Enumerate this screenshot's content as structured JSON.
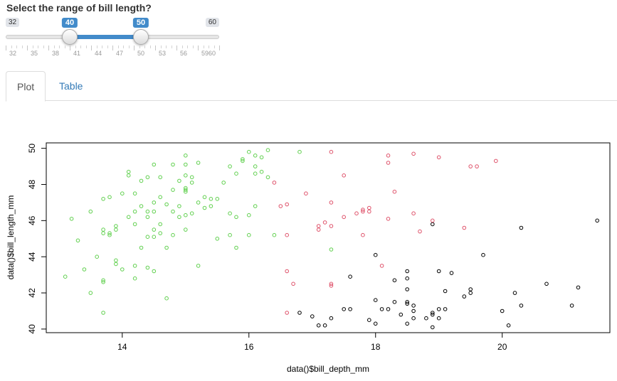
{
  "slider": {
    "label": "Select the range of bill length?",
    "min": 32,
    "max": 60,
    "from": 40,
    "to": 50,
    "min_label": "32",
    "max_label": "60",
    "from_label": "40",
    "to_label": "50",
    "grid_labels": [
      "32",
      "35",
      "38",
      "41",
      "44",
      "47",
      "50",
      "53",
      "56",
      "5960"
    ]
  },
  "tabs": [
    {
      "label": "Plot",
      "active": true
    },
    {
      "label": "Table",
      "active": false
    }
  ],
  "colors": {
    "accent": "#428bca",
    "link": "#337ab7",
    "series_black": "#000000",
    "series_red": "#df536b",
    "series_green": "#61d04f"
  },
  "chart_data": {
    "type": "scatter",
    "xlabel": "data()$bill_depth_mm",
    "ylabel": "data()$bill_length_mm",
    "xlim": [
      12.8,
      21.7
    ],
    "ylim": [
      39.8,
      50.3
    ],
    "x_ticks": [
      "14",
      "16",
      "18",
      "20"
    ],
    "y_ticks": [
      "40",
      "42",
      "44",
      "46",
      "48",
      "50"
    ],
    "series": [
      {
        "color": "#000000",
        "points": [
          [
            17.0,
            40.7
          ],
          [
            17.1,
            40.2
          ],
          [
            17.2,
            40.2
          ],
          [
            16.8,
            40.9
          ],
          [
            17.3,
            40.6
          ],
          [
            17.6,
            41.1
          ],
          [
            17.5,
            41.1
          ],
          [
            17.6,
            42.9
          ],
          [
            17.9,
            40.5
          ],
          [
            18.0,
            40.3
          ],
          [
            18.0,
            41.6
          ],
          [
            18.1,
            41.1
          ],
          [
            18.2,
            41.1
          ],
          [
            18.3,
            41.5
          ],
          [
            18.3,
            42.7
          ],
          [
            18.4,
            40.8
          ],
          [
            18.5,
            40.3
          ],
          [
            18.5,
            41.4
          ],
          [
            18.5,
            41.5
          ],
          [
            18.5,
            42.2
          ],
          [
            18.5,
            42.8
          ],
          [
            18.5,
            43.2
          ],
          [
            18.6,
            40.6
          ],
          [
            18.6,
            41.0
          ],
          [
            18.6,
            41.3
          ],
          [
            18.8,
            40.6
          ],
          [
            18.9,
            40.1
          ],
          [
            18.9,
            40.8
          ],
          [
            18.9,
            40.9
          ],
          [
            19.0,
            40.6
          ],
          [
            19.0,
            41.1
          ],
          [
            19.0,
            43.2
          ],
          [
            19.1,
            41.1
          ],
          [
            19.1,
            42.1
          ],
          [
            19.2,
            43.1
          ],
          [
            19.4,
            41.8
          ],
          [
            19.5,
            42.0
          ],
          [
            19.5,
            42.2
          ],
          [
            19.7,
            44.1
          ],
          [
            20.0,
            41.0
          ],
          [
            20.1,
            40.2
          ],
          [
            20.2,
            42.0
          ],
          [
            20.3,
            41.3
          ],
          [
            20.3,
            45.6
          ],
          [
            20.7,
            42.5
          ],
          [
            21.1,
            41.3
          ],
          [
            21.2,
            42.3
          ],
          [
            21.5,
            46.0
          ],
          [
            18.0,
            44.1
          ],
          [
            18.9,
            45.8
          ]
        ]
      },
      {
        "color": "#df536b",
        "points": [
          [
            16.4,
            48.1
          ],
          [
            16.5,
            46.8
          ],
          [
            16.6,
            46.9
          ],
          [
            16.6,
            45.2
          ],
          [
            16.6,
            43.2
          ],
          [
            16.7,
            42.5
          ],
          [
            16.6,
            40.9
          ],
          [
            16.9,
            47.5
          ],
          [
            17.1,
            45.5
          ],
          [
            17.1,
            45.7
          ],
          [
            17.2,
            45.9
          ],
          [
            17.3,
            45.7
          ],
          [
            17.3,
            47.0
          ],
          [
            17.3,
            42.4
          ],
          [
            17.3,
            42.5
          ],
          [
            17.3,
            49.8
          ],
          [
            17.5,
            48.5
          ],
          [
            17.5,
            46.2
          ],
          [
            17.7,
            46.4
          ],
          [
            17.8,
            46.5
          ],
          [
            17.8,
            46.6
          ],
          [
            17.8,
            45.2
          ],
          [
            17.9,
            46.7
          ],
          [
            17.9,
            46.5
          ],
          [
            18.1,
            43.5
          ],
          [
            18.2,
            46.1
          ],
          [
            18.2,
            49.2
          ],
          [
            18.2,
            49.6
          ],
          [
            18.3,
            47.6
          ],
          [
            18.6,
            49.7
          ],
          [
            18.6,
            46.4
          ],
          [
            18.7,
            45.4
          ],
          [
            18.9,
            46.0
          ],
          [
            19.0,
            49.5
          ],
          [
            19.4,
            45.6
          ],
          [
            19.5,
            49.0
          ],
          [
            19.6,
            49.0
          ],
          [
            19.9,
            49.3
          ]
        ]
      },
      {
        "color": "#61d04f",
        "points": [
          [
            13.1,
            42.9
          ],
          [
            13.2,
            46.1
          ],
          [
            13.3,
            44.9
          ],
          [
            13.4,
            43.3
          ],
          [
            13.5,
            42.0
          ],
          [
            13.5,
            46.5
          ],
          [
            13.6,
            44.0
          ],
          [
            13.7,
            40.9
          ],
          [
            13.7,
            42.6
          ],
          [
            13.7,
            42.7
          ],
          [
            13.7,
            45.3
          ],
          [
            13.7,
            45.5
          ],
          [
            13.7,
            47.2
          ],
          [
            13.8,
            45.2
          ],
          [
            13.8,
            45.3
          ],
          [
            13.8,
            47.3
          ],
          [
            13.9,
            43.6
          ],
          [
            13.9,
            43.8
          ],
          [
            13.9,
            45.5
          ],
          [
            13.9,
            45.7
          ],
          [
            14.0,
            43.3
          ],
          [
            14.0,
            47.5
          ],
          [
            14.1,
            46.2
          ],
          [
            14.1,
            48.5
          ],
          [
            14.1,
            48.7
          ],
          [
            14.2,
            42.8
          ],
          [
            14.2,
            43.5
          ],
          [
            14.2,
            45.8
          ],
          [
            14.2,
            46.5
          ],
          [
            14.2,
            47.5
          ],
          [
            14.3,
            44.5
          ],
          [
            14.3,
            46.8
          ],
          [
            14.3,
            48.2
          ],
          [
            14.4,
            43.4
          ],
          [
            14.4,
            45.1
          ],
          [
            14.4,
            46.2
          ],
          [
            14.4,
            46.5
          ],
          [
            14.4,
            48.4
          ],
          [
            14.5,
            43.2
          ],
          [
            14.5,
            45.1
          ],
          [
            14.5,
            45.5
          ],
          [
            14.5,
            46.5
          ],
          [
            14.5,
            47.0
          ],
          [
            14.5,
            49.1
          ],
          [
            14.6,
            45.3
          ],
          [
            14.6,
            45.8
          ],
          [
            14.6,
            47.3
          ],
          [
            14.6,
            48.4
          ],
          [
            14.7,
            41.7
          ],
          [
            14.7,
            44.5
          ],
          [
            14.7,
            46.9
          ],
          [
            14.8,
            45.2
          ],
          [
            14.8,
            46.5
          ],
          [
            14.8,
            47.7
          ],
          [
            14.8,
            49.1
          ],
          [
            14.9,
            46.2
          ],
          [
            14.9,
            46.8
          ],
          [
            14.9,
            48.2
          ],
          [
            15.0,
            45.5
          ],
          [
            15.0,
            46.3
          ],
          [
            15.0,
            47.6
          ],
          [
            15.0,
            47.7
          ],
          [
            15.0,
            47.8
          ],
          [
            15.0,
            48.5
          ],
          [
            15.0,
            49.1
          ],
          [
            15.0,
            49.6
          ],
          [
            15.1,
            46.4
          ],
          [
            15.1,
            48.1
          ],
          [
            15.1,
            48.4
          ],
          [
            15.2,
            43.5
          ],
          [
            15.2,
            47.0
          ],
          [
            15.2,
            49.2
          ],
          [
            15.3,
            46.7
          ],
          [
            15.3,
            47.3
          ],
          [
            15.4,
            46.8
          ],
          [
            15.5,
            47.2
          ],
          [
            15.5,
            45.0
          ],
          [
            15.6,
            48.1
          ],
          [
            15.7,
            45.2
          ],
          [
            15.7,
            46.4
          ],
          [
            15.7,
            49.0
          ],
          [
            15.8,
            44.5
          ],
          [
            15.8,
            46.2
          ],
          [
            15.8,
            48.6
          ],
          [
            15.9,
            49.3
          ],
          [
            15.9,
            49.4
          ],
          [
            16.0,
            46.3
          ],
          [
            16.0,
            49.8
          ],
          [
            16.0,
            45.2
          ],
          [
            16.1,
            48.6
          ],
          [
            16.1,
            49.6
          ],
          [
            16.2,
            48.7
          ],
          [
            16.2,
            49.5
          ],
          [
            16.3,
            48.4
          ],
          [
            16.3,
            49.9
          ],
          [
            16.4,
            45.2
          ],
          [
            16.8,
            49.8
          ],
          [
            17.3,
            44.4
          ],
          [
            16.1,
            49.0
          ],
          [
            15.4,
            47.2
          ],
          [
            16.1,
            46.8
          ]
        ]
      }
    ]
  }
}
